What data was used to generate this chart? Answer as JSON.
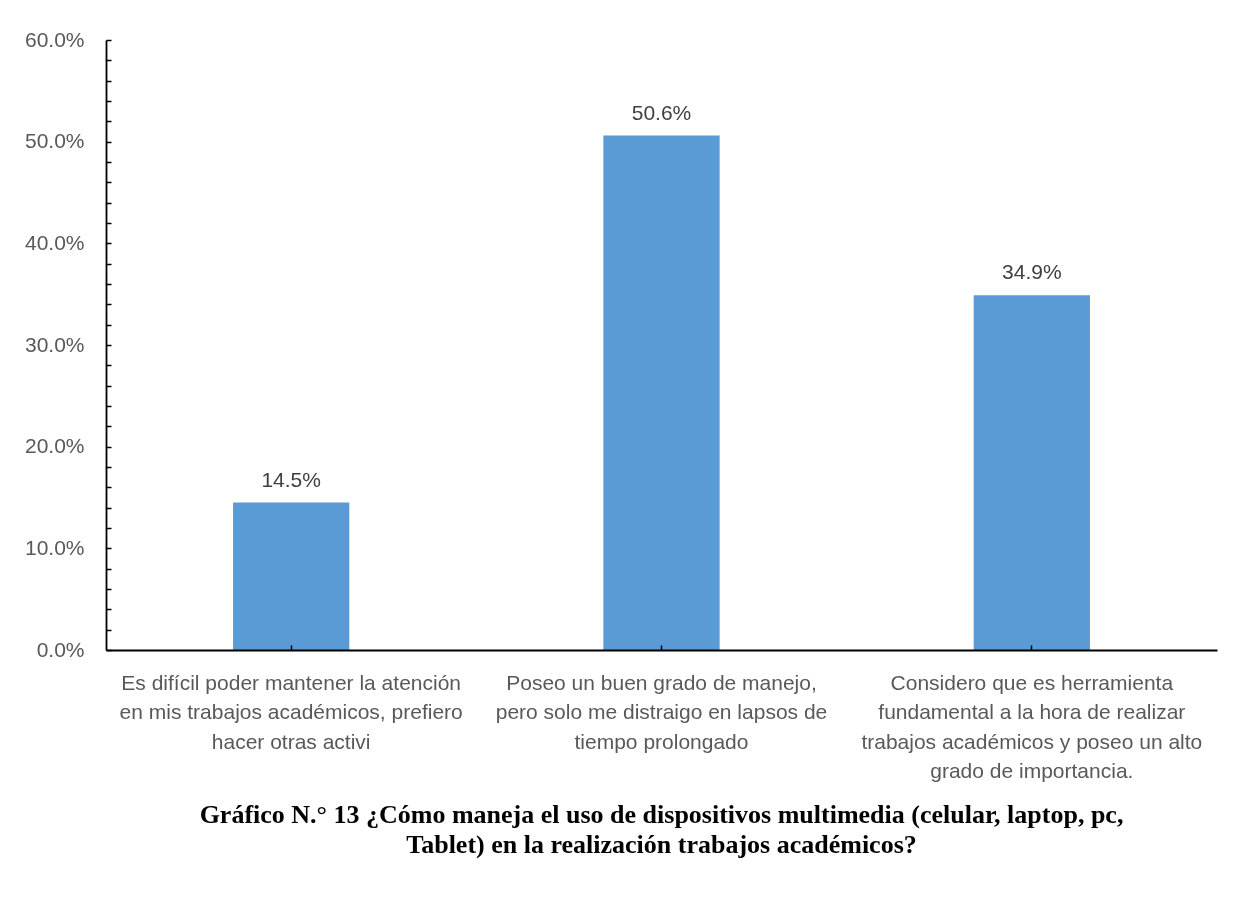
{
  "chart_data": {
    "type": "bar",
    "title": "Gráfico N.° 13 ¿Cómo maneja el uso de dispositivos multimedia (celular, laptop, pc, Tablet) en la realización trabajos académicos?",
    "categories": [
      "Es difícil poder mantener la atención en mis trabajos académicos, prefiero hacer otras activi",
      "Poseo un buen grado de manejo, pero solo me distraigo en lapsos de tiempo prolongado",
      "Considero que es herramienta fundamental a la hora de realizar trabajos académicos y poseo un alto grado de importancia."
    ],
    "values": [
      14.5,
      50.6,
      34.9
    ],
    "value_labels": [
      "14.5%",
      "50.6%",
      "34.9%"
    ],
    "color": "#5b9bd5",
    "ylim": [
      0,
      60
    ],
    "yticks": [
      {
        "value": 0,
        "label": "0.0%"
      },
      {
        "value": 2,
        "label": null
      },
      {
        "value": 4,
        "label": null
      },
      {
        "value": 6,
        "label": null
      },
      {
        "value": 8,
        "label": null
      },
      {
        "value": 10,
        "label": "10.0%"
      },
      {
        "value": 12,
        "label": null
      },
      {
        "value": 14,
        "label": null
      },
      {
        "value": 16,
        "label": null
      },
      {
        "value": 18,
        "label": null
      },
      {
        "value": 20,
        "label": "20.0%"
      },
      {
        "value": 22,
        "label": null
      },
      {
        "value": 24,
        "label": null
      },
      {
        "value": 26,
        "label": null
      },
      {
        "value": 28,
        "label": null
      },
      {
        "value": 30,
        "label": "30.0%"
      },
      {
        "value": 32,
        "label": null
      },
      {
        "value": 34,
        "label": null
      },
      {
        "value": 36,
        "label": null
      },
      {
        "value": 38,
        "label": null
      },
      {
        "value": 40,
        "label": "40.0%"
      },
      {
        "value": 42,
        "label": null
      },
      {
        "value": 44,
        "label": null
      },
      {
        "value": 46,
        "label": null
      },
      {
        "value": 48,
        "label": null
      },
      {
        "value": 50,
        "label": "50.0%"
      },
      {
        "value": 52,
        "label": null
      },
      {
        "value": 54,
        "label": null
      },
      {
        "value": 56,
        "label": null
      },
      {
        "value": 58,
        "label": null
      },
      {
        "value": 60,
        "label": "60.0%"
      }
    ]
  }
}
